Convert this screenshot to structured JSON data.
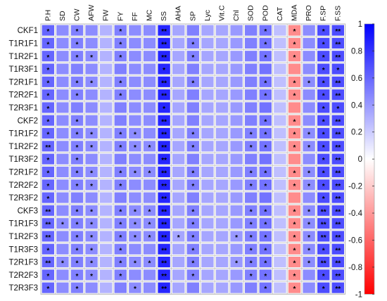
{
  "chart_data": {
    "type": "heatmap",
    "title": "",
    "columns": [
      "P.H",
      "SD",
      "CW",
      "AFW",
      "FW",
      "FY",
      "FF",
      "MC",
      "SS",
      "AHA",
      "SP",
      "Lyc",
      "Vit.C",
      "Chl",
      "SOD",
      "POD",
      "CAT",
      "MDA",
      "PRO",
      "F.SP",
      "F.SS"
    ],
    "rows": [
      "CKF1",
      "T1R1F1",
      "T1R2F1",
      "T1R3F1",
      "T2R1F1",
      "T2R2F1",
      "T2R3F1",
      "CKF2",
      "T1R1F2",
      "T1R2F2",
      "T1R3F2",
      "T2R1F2",
      "T2R2F2",
      "T2R3F2",
      "CKF3",
      "T1R1F3",
      "T1R2F3",
      "T1R3F3",
      "T2R1F3",
      "T2R2F3",
      "T2R3F3"
    ],
    "column_values": [
      0.6,
      0.45,
      0.5,
      0.45,
      0.3,
      0.5,
      0.45,
      0.45,
      0.85,
      0.35,
      0.5,
      0.35,
      0.35,
      0.4,
      0.5,
      0.55,
      0.25,
      -0.45,
      0.45,
      0.7,
      0.7
    ],
    "stars": [
      [
        "*",
        "",
        "*",
        "",
        "",
        "*",
        "",
        "",
        "**",
        "",
        "",
        "",
        "",
        "",
        "",
        "*",
        "",
        "*",
        "",
        "*",
        "**"
      ],
      [
        "*",
        "",
        "*",
        "",
        "",
        "*",
        "",
        "",
        "**",
        "",
        "*",
        "",
        "",
        "",
        "",
        "*",
        "",
        "*",
        "",
        "*",
        "**"
      ],
      [
        "*",
        "",
        "*",
        "*",
        "",
        "*",
        "",
        "",
        "**",
        "",
        "*",
        "",
        "",
        "",
        "",
        "*",
        "",
        "*",
        "",
        "*",
        "**"
      ],
      [
        "*",
        "",
        "",
        "",
        "",
        "",
        "",
        "",
        "*",
        "",
        "",
        "",
        "",
        "",
        "",
        "",
        "",
        "",
        "",
        "*",
        "*"
      ],
      [
        "*",
        "",
        "*",
        "*",
        "",
        "*",
        "",
        "",
        "**",
        "",
        "*",
        "",
        "",
        "",
        "",
        "*",
        "",
        "*",
        "*",
        "*",
        "**"
      ],
      [
        "*",
        "",
        "*",
        "",
        "",
        "*",
        "",
        "",
        "**",
        "",
        "",
        "",
        "",
        "",
        "",
        "*",
        "",
        "*",
        "",
        "*",
        "**"
      ],
      [
        "*",
        "",
        "",
        "",
        "",
        "",
        "",
        "",
        "*",
        "",
        "",
        "",
        "",
        "",
        "",
        "",
        "",
        "",
        "",
        "*",
        "*"
      ],
      [
        "*",
        "",
        "*",
        "",
        "",
        "",
        "",
        "",
        "**",
        "",
        "",
        "",
        "",
        "",
        "",
        "*",
        "",
        "*",
        "",
        "*",
        "**"
      ],
      [
        "*",
        "",
        "*",
        "*",
        "",
        "*",
        "*",
        "",
        "**",
        "",
        "*",
        "",
        "",
        "",
        "*",
        "*",
        "",
        "*",
        "*",
        "*",
        "**"
      ],
      [
        "**",
        "",
        "*",
        "*",
        "",
        "*",
        "*",
        "*",
        "**",
        "",
        "*",
        "",
        "",
        "",
        "*",
        "*",
        "",
        "*",
        "*",
        "*",
        "**"
      ],
      [
        "*",
        "",
        "*",
        "",
        "",
        "",
        "",
        "",
        "**",
        "",
        "",
        "",
        "",
        "",
        "",
        "",
        "",
        "",
        "",
        "*",
        "**"
      ],
      [
        "*",
        "",
        "*",
        "*",
        "",
        "*",
        "*",
        "*",
        "**",
        "",
        "*",
        "",
        "",
        "",
        "*",
        "*",
        "",
        "*",
        "*",
        "*",
        "**"
      ],
      [
        "*",
        "",
        "*",
        "*",
        "",
        "*",
        "",
        "",
        "**",
        "",
        "*",
        "",
        "",
        "",
        "*",
        "*",
        "",
        "*",
        "*",
        "*",
        "**"
      ],
      [
        "*",
        "",
        "",
        "",
        "",
        "",
        "",
        "",
        "**",
        "",
        "",
        "",
        "",
        "",
        "",
        "",
        "",
        "",
        "",
        "*",
        "**"
      ],
      [
        "**",
        "",
        "*",
        "*",
        "",
        "*",
        "*",
        "*",
        "**",
        "",
        "*",
        "",
        "",
        "",
        "*",
        "*",
        "",
        "*",
        "*",
        "**",
        "**"
      ],
      [
        "**",
        "*",
        "*",
        "*",
        "",
        "*",
        "*",
        "*",
        "**",
        "",
        "*",
        "",
        "",
        "",
        "*",
        "*",
        "",
        "*",
        "*",
        "**",
        "**"
      ],
      [
        "**",
        "",
        "*",
        "*",
        "",
        "*",
        "*",
        "*",
        "**",
        "*",
        "*",
        "",
        "",
        "*",
        "*",
        "*",
        "",
        "*",
        "*",
        "**",
        "**"
      ],
      [
        "*",
        "",
        "*",
        "*",
        "",
        "*",
        "",
        "",
        "**",
        "",
        "*",
        "",
        "",
        "",
        "*",
        "*",
        "",
        "*",
        "*",
        "*",
        "**"
      ],
      [
        "**",
        "*",
        "*",
        "*",
        "",
        "*",
        "*",
        "*",
        "**",
        "",
        "*",
        "",
        "",
        "*",
        "*",
        "*",
        "",
        "*",
        "*",
        "**",
        "**"
      ],
      [
        "*",
        "",
        "*",
        "*",
        "",
        "*",
        "",
        "",
        "**",
        "",
        "*",
        "",
        "",
        "",
        "*",
        "*",
        "",
        "*",
        "",
        "*",
        "**"
      ],
      [
        "*",
        "",
        "*",
        "",
        "",
        "",
        "*",
        "",
        "**",
        "",
        "",
        "",
        "",
        "",
        "",
        "*",
        "",
        "*",
        "",
        "*",
        "**"
      ]
    ],
    "colorbar": {
      "min": -1,
      "max": 1,
      "ticks": [
        "1",
        "0.8",
        "0.6",
        "0.4",
        "0.2",
        "0",
        "-0.2",
        "-0.4",
        "-0.6",
        "-0.8",
        "-1"
      ]
    },
    "colors": {
      "negative": "#ff0000",
      "zero": "#ffffff",
      "positive": "#0000ff",
      "cell_border": "#c8c8c8",
      "frame": "#888888"
    }
  }
}
